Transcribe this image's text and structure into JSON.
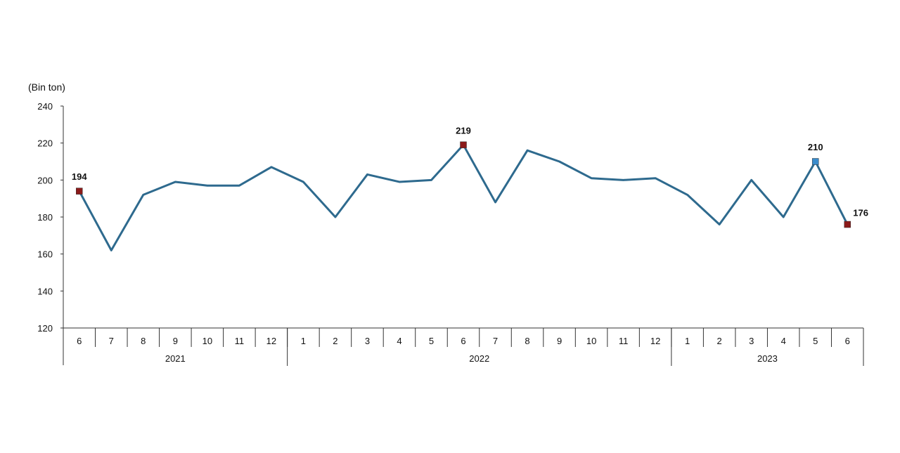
{
  "chart_data": {
    "type": "line",
    "ylabel": "(Bin ton)",
    "ylim": [
      120,
      240
    ],
    "yticks": [
      120,
      140,
      160,
      180,
      200,
      220,
      240
    ],
    "grid": false,
    "categories": [
      "6",
      "7",
      "8",
      "9",
      "10",
      "11",
      "12",
      "1",
      "2",
      "3",
      "4",
      "5",
      "6",
      "7",
      "8",
      "9",
      "10",
      "11",
      "12",
      "1",
      "2",
      "3",
      "4",
      "5",
      "6"
    ],
    "years": [
      {
        "label": "2021",
        "count": 7
      },
      {
        "label": "2022",
        "count": 12
      },
      {
        "label": "2023",
        "count": 6
      }
    ],
    "series": [
      {
        "values": [
          194,
          162,
          192,
          199,
          197,
          197,
          207,
          199,
          180,
          203,
          199,
          200,
          219,
          188,
          216,
          210,
          201,
          200,
          201,
          192,
          176,
          200,
          180,
          210,
          176
        ],
        "color": "#2e6a8e"
      }
    ],
    "data_labels": [
      {
        "index": 0,
        "text": "194",
        "marker_color": "#8b1a1a"
      },
      {
        "index": 12,
        "text": "219",
        "marker_color": "#8b1a1a"
      },
      {
        "index": 23,
        "text": "210",
        "marker_color": "#3a8ccc"
      },
      {
        "index": 24,
        "text": "176",
        "marker_color": "#8b1a1a"
      }
    ]
  }
}
